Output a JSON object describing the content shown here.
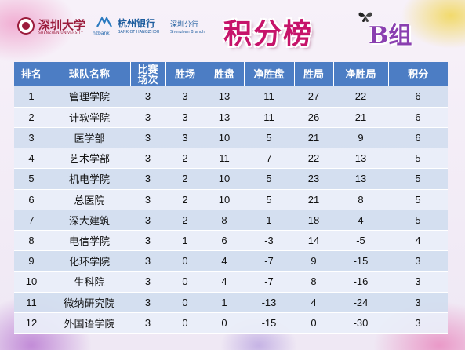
{
  "header": {
    "szu_name": "深圳大学",
    "szu_en": "SHENZHEN UNIVERSITY",
    "bank_abbr": "hzbank",
    "bank_name": "杭州银行",
    "bank_branch": "深圳分行",
    "bank_en": "BANK OF HANGZHOU",
    "bank_en_branch": "Shenzhen Branch",
    "title": "积分榜",
    "group": "B组"
  },
  "table": {
    "columns": [
      "排名",
      "球队名称",
      "比赛场次",
      "胜场",
      "胜盘",
      "净胜盘",
      "胜局",
      "净胜局",
      "积分"
    ],
    "rows": [
      [
        "1",
        "管理学院",
        "3",
        "3",
        "13",
        "11",
        "27",
        "22",
        "6"
      ],
      [
        "2",
        "计软学院",
        "3",
        "3",
        "13",
        "11",
        "26",
        "21",
        "6"
      ],
      [
        "3",
        "医学部",
        "3",
        "3",
        "10",
        "5",
        "21",
        "9",
        "6"
      ],
      [
        "4",
        "艺术学部",
        "3",
        "2",
        "11",
        "7",
        "22",
        "13",
        "5"
      ],
      [
        "5",
        "机电学院",
        "3",
        "2",
        "10",
        "5",
        "23",
        "13",
        "5"
      ],
      [
        "6",
        "总医院",
        "3",
        "2",
        "10",
        "5",
        "21",
        "8",
        "5"
      ],
      [
        "7",
        "深大建筑",
        "3",
        "2",
        "8",
        "1",
        "18",
        "4",
        "5"
      ],
      [
        "8",
        "电信学院",
        "3",
        "1",
        "6",
        "-3",
        "14",
        "-5",
        "4"
      ],
      [
        "9",
        "化环学院",
        "3",
        "0",
        "4",
        "-7",
        "9",
        "-15",
        "3"
      ],
      [
        "10",
        "生科院",
        "3",
        "0",
        "4",
        "-7",
        "8",
        "-16",
        "3"
      ],
      [
        "11",
        "微纳研究院",
        "3",
        "0",
        "1",
        "-13",
        "4",
        "-24",
        "3"
      ],
      [
        "12",
        "外国语学院",
        "3",
        "0",
        "0",
        "-15",
        "0",
        "-30",
        "3"
      ]
    ]
  },
  "colors": {
    "header_bg": "#4c7dc4",
    "row_odd": "#d1ddef",
    "row_even": "#e9eef8",
    "title": "#c6146a",
    "group": "#8a3fb0"
  }
}
